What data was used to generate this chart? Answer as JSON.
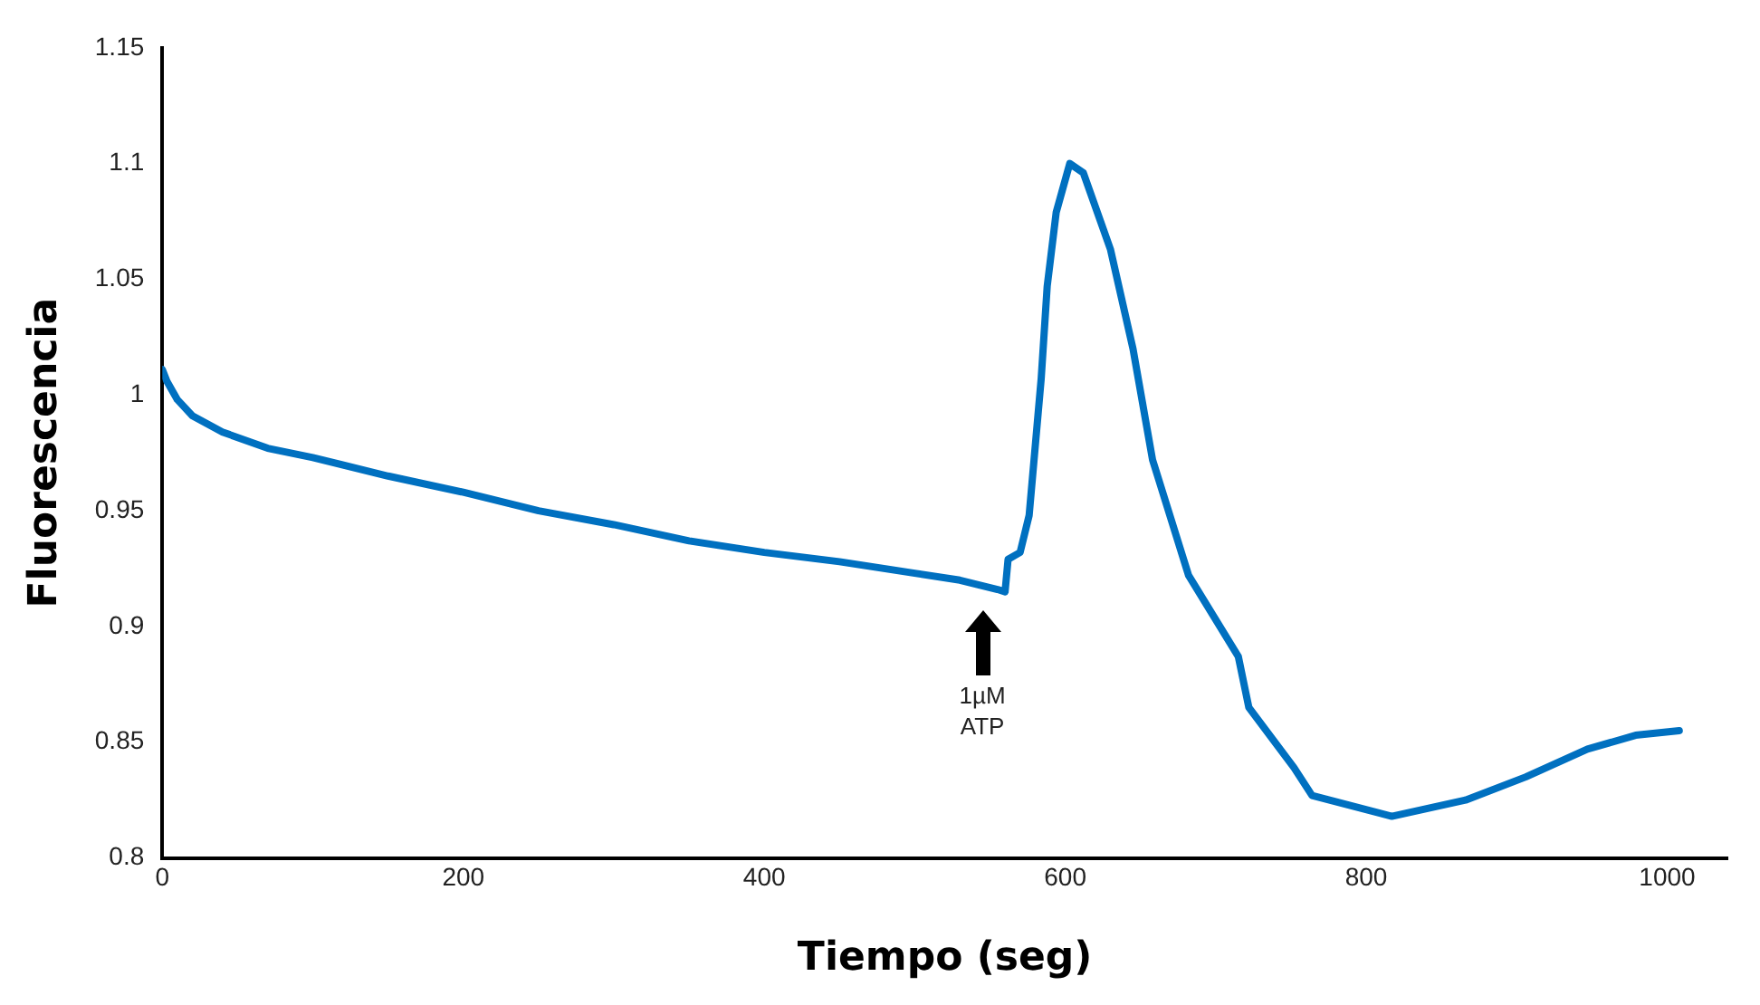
{
  "chart_data": {
    "type": "line",
    "xlabel": "Tiempo (seg)",
    "ylabel": "Fluorescencia",
    "xlim": [
      0,
      1040
    ],
    "xticks": [
      0,
      200,
      400,
      600,
      800,
      1000
    ],
    "ylim": [
      0.8,
      1.15
    ],
    "yticks": [
      0.8,
      0.85,
      0.9,
      0.95,
      1,
      1.05,
      1.1,
      1.15
    ],
    "grid": false,
    "legend": false,
    "marker": "none",
    "line_style": "solid",
    "annotations": [
      "1µM ATP"
    ],
    "series": [
      {
        "color": "#0070c0",
        "x": [
          0,
          3,
          10,
          20,
          40,
          70,
          100,
          150,
          200,
          250,
          300,
          350,
          400,
          450,
          500,
          530,
          555,
          560,
          562,
          570,
          576,
          584,
          588,
          594,
          603,
          612,
          630,
          645,
          658,
          682,
          715,
          722,
          752,
          764,
          817,
          866,
          906,
          947,
          979,
          1008
        ],
        "values": [
          1.011,
          1.006,
          0.998,
          0.991,
          0.984,
          0.977,
          0.973,
          0.965,
          0.958,
          0.95,
          0.944,
          0.937,
          0.932,
          0.928,
          0.923,
          0.92,
          0.916,
          0.915,
          0.929,
          0.932,
          0.948,
          1.007,
          1.047,
          1.079,
          1.1,
          1.096,
          1.063,
          1.02,
          0.972,
          0.922,
          0.887,
          0.865,
          0.839,
          0.827,
          0.818,
          0.825,
          0.835,
          0.847,
          0.853,
          0.855
        ]
      }
    ]
  }
}
